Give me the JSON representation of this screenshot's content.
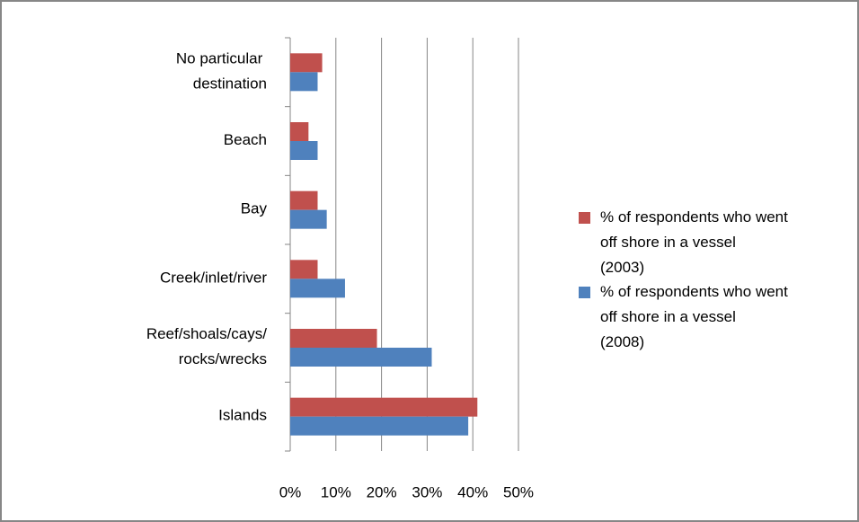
{
  "chart_data": {
    "type": "barh",
    "categories": [
      "No particular destination",
      "Beach",
      "Bay",
      "Creek/inlet/river",
      "Reef/shoals/cays/rocks/wrecks",
      "Islands"
    ],
    "series": [
      {
        "name": "% of respondents who went off shore in a vessel (2003)",
        "color": "#c0504d",
        "values": [
          7,
          4,
          6,
          6,
          19,
          41
        ]
      },
      {
        "name": "% of respondents who went off shore in a vessel (2008)",
        "color": "#4f81bd",
        "values": [
          6,
          6,
          8,
          12,
          31,
          39
        ]
      }
    ],
    "xlim": [
      0,
      50
    ],
    "xticks": [
      {
        "value": 0,
        "label": "0%"
      },
      {
        "value": 10,
        "label": "10%"
      },
      {
        "value": 20,
        "label": "20%"
      },
      {
        "value": 30,
        "label": "30%"
      },
      {
        "value": 40,
        "label": "40%"
      },
      {
        "value": 50,
        "label": "50%"
      }
    ],
    "grid": true,
    "legend": "right"
  }
}
